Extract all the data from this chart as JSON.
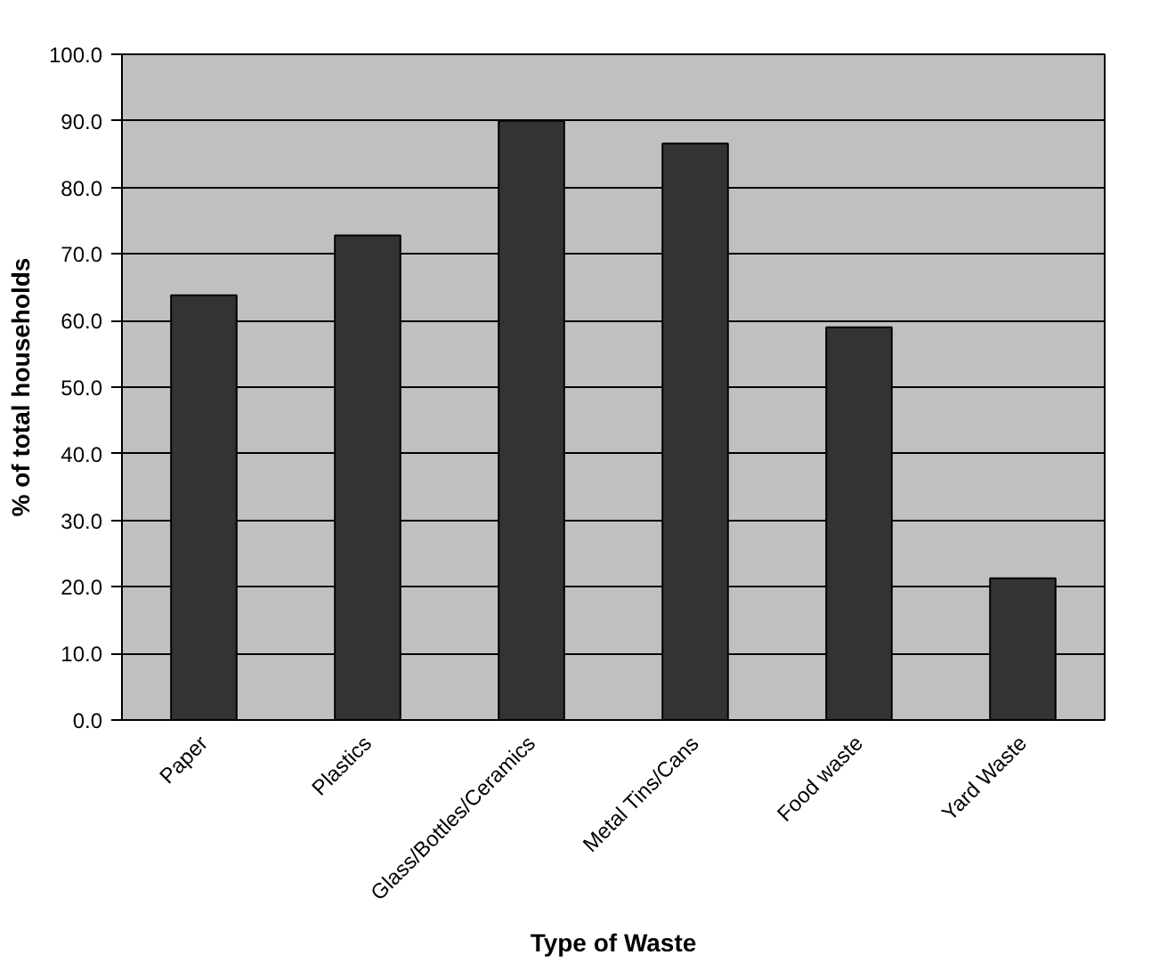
{
  "chart_data": {
    "type": "bar",
    "xlabel": "Type of Waste",
    "ylabel": "% of total households",
    "categories": [
      "Paper",
      "Plastics",
      "Glass/Bottles/Ceramics",
      "Metal Tins/Cans",
      "Food waste",
      "Yard Waste"
    ],
    "values": [
      63.8,
      72.8,
      90.0,
      86.6,
      59.0,
      21.3
    ],
    "color": "#333333",
    "ylim": [
      0,
      100
    ],
    "yticks": [
      {
        "value": 0,
        "label": "0.0"
      },
      {
        "value": 10,
        "label": "10.0"
      },
      {
        "value": 20,
        "label": "20.0"
      },
      {
        "value": 30,
        "label": "30.0"
      },
      {
        "value": 40,
        "label": "40.0"
      },
      {
        "value": 50,
        "label": "50.0"
      },
      {
        "value": 60,
        "label": "60.0"
      },
      {
        "value": 70,
        "label": "70.0"
      },
      {
        "value": 80,
        "label": "80.0"
      },
      {
        "value": 90,
        "label": "90.0"
      },
      {
        "value": 100,
        "label": "100.0"
      }
    ],
    "grid": "y"
  }
}
